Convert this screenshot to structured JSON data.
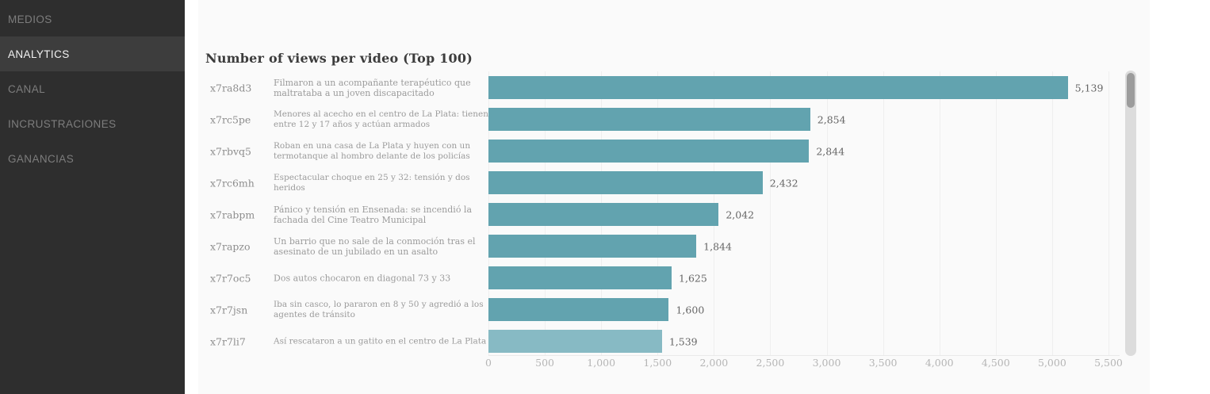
{
  "sidebar": {
    "items": [
      {
        "label": "MEDIOS",
        "active": false
      },
      {
        "label": "ANALYTICS",
        "active": true
      },
      {
        "label": "CANAL",
        "active": false
      },
      {
        "label": "INCRUSTRACIONES",
        "active": false
      },
      {
        "label": "GANANCIAS",
        "active": false
      }
    ]
  },
  "chart": {
    "title": "Number of views per video (Top 100)"
  },
  "chart_data": {
    "type": "bar",
    "orientation": "horizontal",
    "title": "Number of views per video (Top 100)",
    "categories": [
      "x7ra8d3",
      "x7rc5pe",
      "x7rbvq5",
      "x7rc6mh",
      "x7rabpm",
      "x7rapzo",
      "x7r7oc5",
      "x7r7jsn",
      "x7r7li7"
    ],
    "labels": [
      "Filmaron a un acompañante terapéutico que maltrataba a un joven discapacitado",
      "Menores al acecho en el centro de La Plata: tienen entre 12 y 17 años y actúan armados",
      "Roban en una casa de La Plata y huyen con un termotanque al hombro delante de los policías",
      "Espectacular choque en 25 y 32: tensión y dos heridos",
      "Pánico y tensión en Ensenada: se incendió la fachada del Cine Teatro Municipal",
      "Un barrio que no sale de la conmoción tras el asesinato de un jubilado en un asalto",
      "Dos autos chocaron en diagonal 73 y 33",
      "Iba sin casco, lo pararon en 8 y 50 y agredió a los agentes de tránsito",
      "Así rescataron a un gatito en el centro de La Plata"
    ],
    "values": [
      5139,
      2854,
      2844,
      2432,
      2042,
      1844,
      1625,
      1600,
      1539
    ],
    "value_labels": [
      "5,139",
      "2,854",
      "2,844",
      "2,432",
      "2,042",
      "1,844",
      "1,625",
      "1,600",
      "1,539"
    ],
    "xlim": [
      0,
      5500
    ],
    "x_ticks": [
      "0",
      "500",
      "1,000",
      "1,500",
      "2,000",
      "2,500",
      "3,000",
      "3,500",
      "4,000",
      "4,500",
      "5,000",
      "5,500"
    ],
    "grid": true,
    "legend": "none",
    "bar_color": "#62a3af",
    "highlight_bar_color": "#87bac4",
    "highlight_index": 8
  }
}
